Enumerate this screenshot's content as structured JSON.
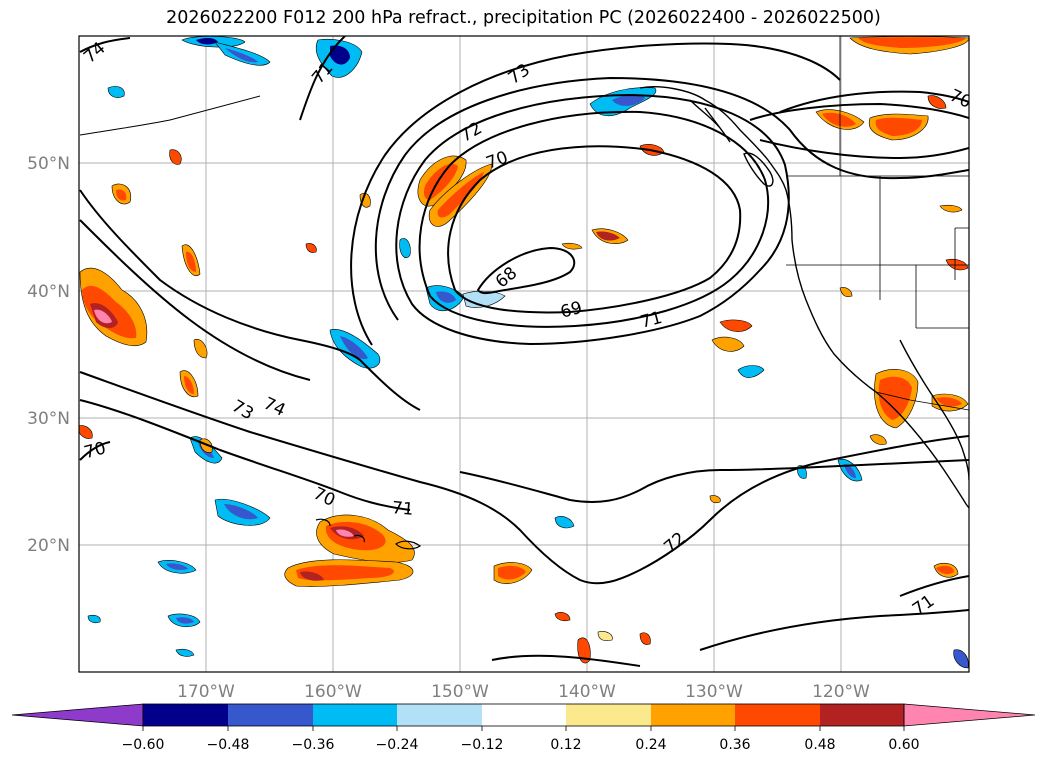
{
  "title": "2026022200 F012 200 hPa refract., precipitation PC (2026022400 - 2026022500)",
  "map": {
    "lon_range": [
      -180,
      -110
    ],
    "lat_range": [
      10,
      60
    ],
    "lat_labels": [
      "20°N",
      "30°N",
      "40°N",
      "50°N"
    ],
    "lon_labels": [
      "170°W",
      "160°W",
      "150°W",
      "140°W",
      "130°W",
      "120°W"
    ],
    "contour_labels": [
      "74",
      "72",
      "73",
      "70",
      "71",
      "68",
      "69",
      "71",
      "73",
      "74",
      "70",
      "70",
      "71",
      "72",
      "71",
      "70"
    ]
  },
  "colorbar": {
    "tick_labels": [
      "−0.60",
      "−0.48",
      "−0.36",
      "−0.24",
      "−0.12",
      "0.12",
      "0.24",
      "0.36",
      "0.48",
      "0.60"
    ],
    "colors": [
      "#8e3acb",
      "#00008b",
      "#3658cc",
      "#00bcf5",
      "#b2e0f6",
      "#ffffff",
      "#fde98d",
      "#ffa200",
      "#ff4800",
      "#b22222",
      "#ff85b0"
    ]
  },
  "colors": {
    "grid": "#b0b0b0",
    "contour": "#000000",
    "label_gray": "#7f7f7f"
  }
}
